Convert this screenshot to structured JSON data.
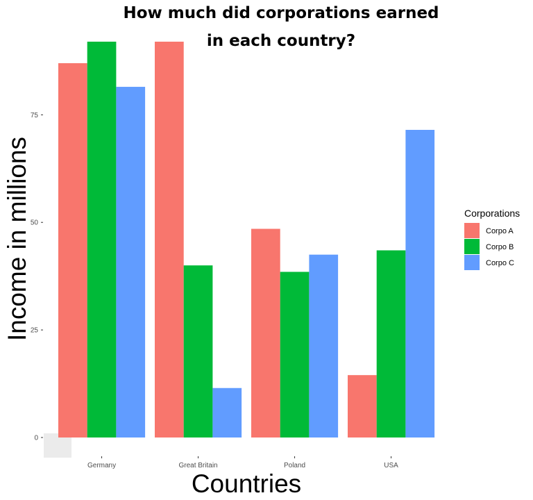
{
  "chart_data": {
    "type": "bar",
    "title_lines": [
      "How much did corporations earned",
      "in each country?"
    ],
    "xlabel": "Countries",
    "ylabel": "Income in millions",
    "categories": [
      "Germany",
      "Great Britain",
      "Poland",
      "USA"
    ],
    "series": [
      {
        "name": "Corpo A",
        "color": "#F8766D",
        "values": [
          87,
          92,
          48.5,
          14.5
        ]
      },
      {
        "name": "Corpo B",
        "color": "#00BA38",
        "values": [
          92,
          40,
          38.5,
          43.5
        ]
      },
      {
        "name": "Corpo C",
        "color": "#619CFF",
        "values": [
          81.5,
          11.5,
          42.5,
          71.5
        ]
      }
    ],
    "yticks": [
      0,
      25,
      50,
      75
    ],
    "ylim": [
      0,
      92
    ],
    "legend": {
      "title": "Corporations",
      "position": "right"
    },
    "grid": false
  }
}
